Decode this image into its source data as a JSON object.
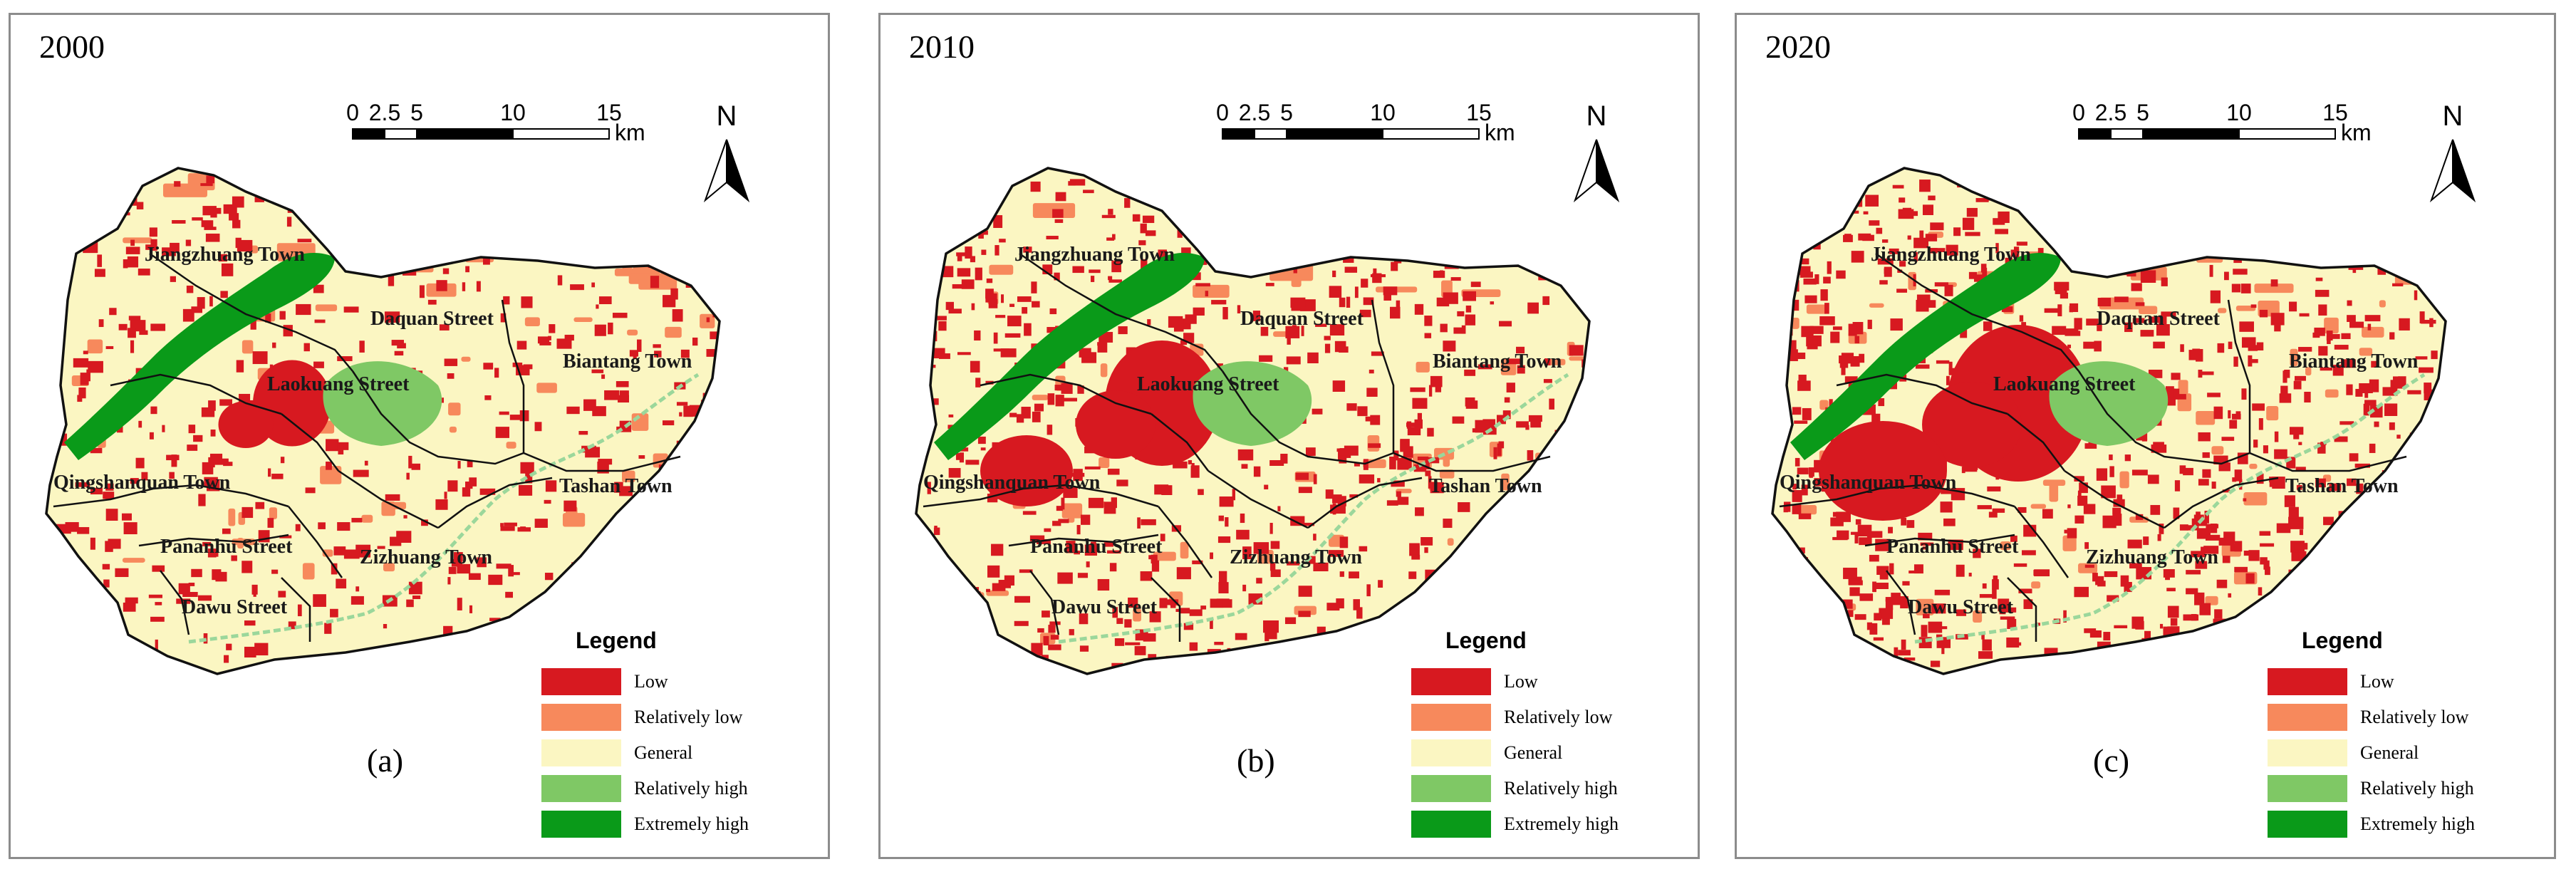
{
  "panels": [
    {
      "year": "2000",
      "caption": "(a)"
    },
    {
      "year": "2010",
      "caption": "(b)"
    },
    {
      "year": "2020",
      "caption": "(c)"
    }
  ],
  "scale_bar": {
    "ticks": [
      "0",
      "2.5",
      "5",
      "10",
      "15"
    ],
    "unit": "km"
  },
  "north_label": "N",
  "legend": {
    "title": "Legend",
    "items": [
      {
        "label": "Low",
        "color": "#d71920"
      },
      {
        "label": "Relatively low",
        "color": "#f7895c"
      },
      {
        "label": "General",
        "color": "#fbf6c2"
      },
      {
        "label": "Relatively high",
        "color": "#7fc865"
      },
      {
        "label": "Extremely high",
        "color": "#0a9a19"
      }
    ]
  },
  "places": [
    "Jiangzhuang Town",
    "Daquan Street",
    "Biantang Town",
    "Laokuang Street",
    "Qingshanquan Town",
    "Tashan Town",
    "Pananhu Street",
    "Zizhuang Town",
    "Dawu Street"
  ],
  "colors": {
    "general": "#fbf6c2",
    "low": "#d71920",
    "rel_low": "#f7895c",
    "rel_high": "#7fc865",
    "ext_high": "#0a9a19",
    "river": "#9bd79b"
  }
}
